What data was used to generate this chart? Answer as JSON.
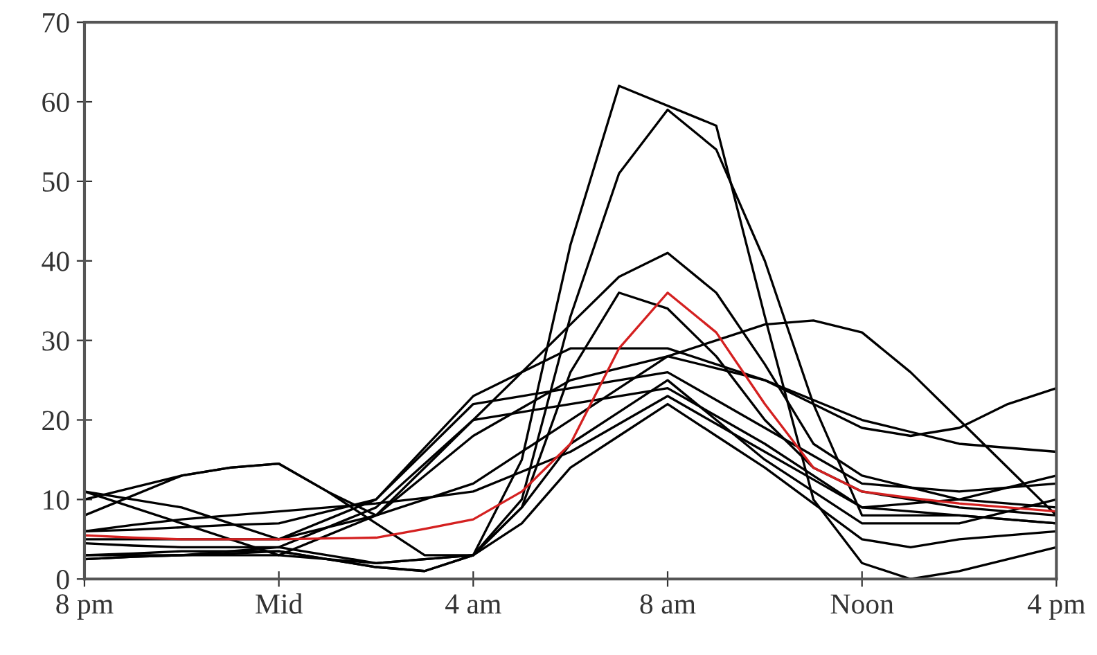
{
  "chart_data": {
    "type": "line",
    "categories": [
      "8 pm",
      null,
      null,
      null,
      "Mid",
      null,
      null,
      null,
      "4 am",
      null,
      null,
      null,
      "8 am",
      null,
      null,
      null,
      "Noon",
      null,
      null,
      null,
      "4 pm"
    ],
    "ylim": [
      0,
      70
    ],
    "yticks": [
      0,
      10,
      20,
      30,
      40,
      50,
      60,
      70
    ],
    "series": [
      {
        "color": "#000000",
        "values": [
          3,
          3.2,
          3.5,
          3.5,
          3.5,
          2.5,
          1.5,
          1,
          3,
          15,
          42,
          62,
          null,
          57,
          33,
          10,
          2,
          0,
          1,
          2.5,
          4
        ]
      },
      {
        "color": "#000000",
        "values": [
          2.5,
          2.8,
          3,
          3.5,
          4,
          3,
          2,
          2.5,
          3,
          10,
          33,
          51,
          59,
          54,
          40,
          22,
          8,
          8,
          8,
          7.5,
          7
        ]
      },
      {
        "color": "#000000",
        "values": [
          11,
          9,
          7,
          5,
          3,
          5.5,
          8,
          14,
          20,
          26,
          32,
          38,
          41,
          36,
          27,
          17,
          13,
          11.5,
          10,
          9.5,
          9
        ]
      },
      {
        "color": "#000000",
        "values": [
          8,
          10.5,
          13,
          14,
          14.5,
          11,
          7,
          3,
          3,
          9,
          26,
          36,
          34,
          28,
          20,
          14,
          11,
          10,
          9,
          8.5,
          8
        ]
      },
      {
        "color": "#000000",
        "values": [
          5,
          5,
          5,
          5,
          5,
          6.5,
          8,
          10,
          12,
          16,
          20,
          24,
          28,
          30,
          32,
          32.5,
          31,
          26,
          20,
          14,
          8
        ]
      },
      {
        "color": "#000000",
        "values": [
          10,
          11.5,
          13,
          14,
          14.5,
          11,
          8,
          13,
          18,
          21.5,
          25,
          26.5,
          28,
          26.5,
          25,
          22,
          19,
          18,
          19,
          22,
          24
        ]
      },
      {
        "color": "#000000",
        "values": [
          6,
          6.2,
          6.5,
          6.8,
          7,
          8.5,
          10,
          16.5,
          23,
          26,
          29,
          29,
          29,
          27,
          25,
          22.5,
          20,
          18.5,
          17,
          16.5,
          16
        ]
      },
      {
        "color": "#000000",
        "values": [
          11,
          10,
          9,
          7,
          5,
          7.5,
          10,
          16,
          22,
          23,
          24,
          25,
          26,
          22.5,
          19,
          15.5,
          12,
          11.5,
          11,
          11.5,
          12
        ]
      },
      {
        "color": "#000000",
        "values": [
          4.5,
          4.2,
          4,
          4,
          4,
          6.5,
          9,
          14.5,
          20,
          21,
          22,
          23,
          24,
          20.5,
          17,
          13,
          9,
          9.5,
          10,
          11.5,
          13
        ]
      },
      {
        "color": "#000000",
        "values": [
          2.5,
          2.8,
          3,
          3,
          3,
          2.5,
          2,
          2.5,
          3,
          9,
          17,
          21,
          25,
          20,
          15,
          11,
          7,
          7,
          7,
          8.5,
          10
        ]
      },
      {
        "color": "#000000",
        "values": [
          6,
          6.8,
          7.5,
          8,
          8.5,
          9,
          9.5,
          10.2,
          11,
          13.5,
          16,
          19.5,
          23,
          19.5,
          16,
          12.5,
          9,
          8.5,
          8,
          7.5,
          7
        ]
      },
      {
        "color": "#000000",
        "values": [
          3,
          3,
          3,
          3.2,
          3.5,
          2.5,
          1.5,
          1,
          3,
          7,
          14,
          18,
          22,
          18,
          14,
          9.5,
          5,
          4,
          5,
          5.5,
          6
        ]
      },
      {
        "color": "#d42020",
        "values": [
          5.5,
          5.2,
          5,
          5,
          5,
          5.1,
          5.2,
          6.3,
          7.5,
          11,
          17,
          29,
          36,
          31,
          22,
          14,
          11,
          10.2,
          9.5,
          9,
          8.5
        ]
      }
    ]
  }
}
